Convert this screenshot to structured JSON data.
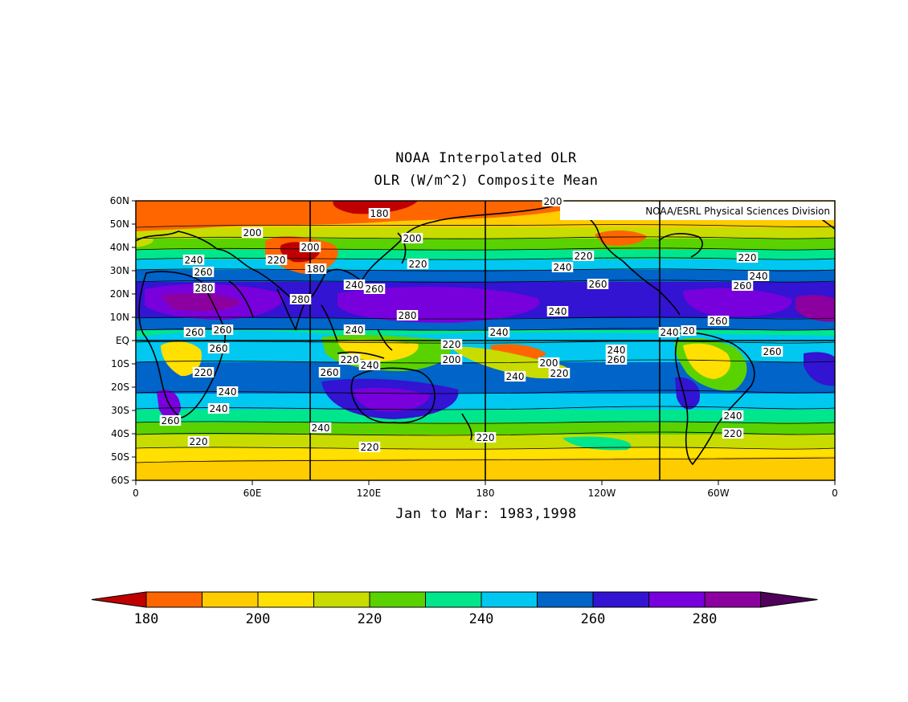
{
  "header": {
    "title": "NOAA Interpolated OLR",
    "subtitle": "OLR (W/m^2) Composite Mean"
  },
  "credit": "NOAA/ESRL Physical Sciences Division",
  "period": "Jan to Mar: 1983,1998",
  "axes": {
    "lat_ticks": [
      "60N",
      "50N",
      "40N",
      "30N",
      "20N",
      "10N",
      "EQ",
      "10S",
      "20S",
      "30S",
      "40S",
      "50S",
      "60S"
    ],
    "lon_ticks": [
      "0",
      "60E",
      "120E",
      "180",
      "120W",
      "60W",
      "0"
    ]
  },
  "colorbar": {
    "labels": [
      "180",
      "200",
      "220",
      "240",
      "260",
      "280"
    ],
    "colors": [
      "#c00000",
      "#ff6600",
      "#ffcc00",
      "#ffe000",
      "#c8dc00",
      "#5ad200",
      "#00e68c",
      "#00c8f0",
      "#0064c8",
      "#3214d2",
      "#7800dc",
      "#8c00a0",
      "#50005a"
    ]
  },
  "contour_labels": [
    {
      "text": "180"
    },
    {
      "text": "200"
    },
    {
      "text": "200"
    },
    {
      "text": "200"
    },
    {
      "text": "200"
    },
    {
      "text": "220"
    },
    {
      "text": "220"
    },
    {
      "text": "220"
    },
    {
      "text": "220"
    },
    {
      "text": "180"
    },
    {
      "text": "240"
    },
    {
      "text": "240"
    },
    {
      "text": "240"
    },
    {
      "text": "260"
    },
    {
      "text": "260"
    },
    {
      "text": "260"
    },
    {
      "text": "280"
    },
    {
      "text": "280"
    },
    {
      "text": "260"
    },
    {
      "text": "240"
    },
    {
      "text": "280"
    },
    {
      "text": "240"
    },
    {
      "text": "260"
    },
    {
      "text": "240"
    },
    {
      "text": "240"
    },
    {
      "text": "20"
    },
    {
      "text": "260"
    },
    {
      "text": "260"
    },
    {
      "text": "220"
    },
    {
      "text": "240"
    },
    {
      "text": "220"
    },
    {
      "text": "200"
    },
    {
      "text": "240"
    },
    {
      "text": "260"
    },
    {
      "text": "200"
    },
    {
      "text": "220"
    },
    {
      "text": "260"
    },
    {
      "text": "220"
    },
    {
      "text": "240"
    },
    {
      "text": "240"
    },
    {
      "text": "260"
    },
    {
      "text": "260"
    },
    {
      "text": "240"
    },
    {
      "text": "240"
    },
    {
      "text": "260"
    },
    {
      "text": "240"
    },
    {
      "text": "240"
    },
    {
      "text": "220"
    },
    {
      "text": "220"
    },
    {
      "text": "220"
    },
    {
      "text": "220"
    }
  ]
}
